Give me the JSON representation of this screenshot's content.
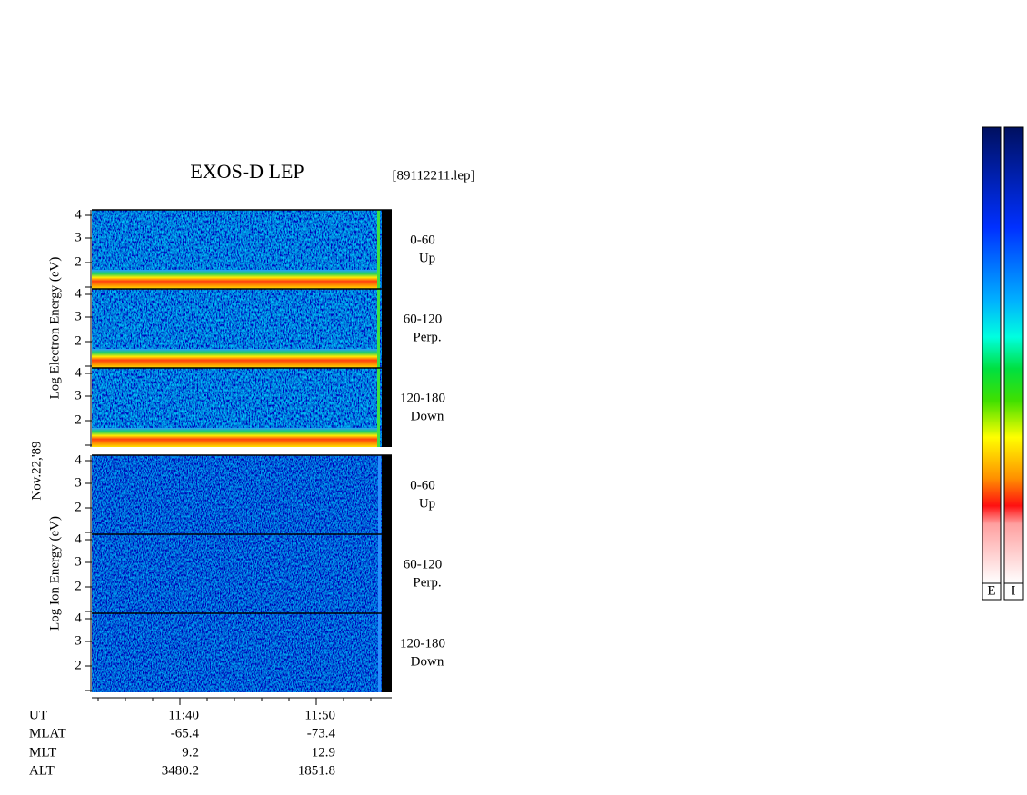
{
  "header": {
    "title": "EXOS-D LEP",
    "file": "[89112211.lep]"
  },
  "date": "Nov.22,'89",
  "groups": [
    {
      "axis_label": "Log Electron Energy (eV)",
      "kind": "electron",
      "panels": [
        {
          "yticks": [
            "4",
            "3",
            "2"
          ],
          "label": [
            "0-60",
            "Up"
          ]
        },
        {
          "yticks": [
            "4",
            "3",
            "2"
          ],
          "label": [
            "60-120",
            "Perp."
          ]
        },
        {
          "yticks": [
            "4",
            "3",
            "2"
          ],
          "label": [
            "120-180",
            "Down"
          ]
        }
      ]
    },
    {
      "axis_label": "Log Ion Energy (eV)",
      "kind": "ion",
      "panels": [
        {
          "yticks": [
            "4",
            "3",
            "2"
          ],
          "label": [
            "0-60",
            "Up"
          ]
        },
        {
          "yticks": [
            "4",
            "3",
            "2"
          ],
          "label": [
            "60-120",
            "Perp."
          ]
        },
        {
          "yticks": [
            "4",
            "3",
            "2"
          ],
          "label": [
            "120-180",
            "Down"
          ]
        }
      ]
    }
  ],
  "footer": {
    "rows": [
      [
        "UT",
        "11:40",
        "11:50"
      ],
      [
        "MLAT",
        "-65.4",
        "-73.4"
      ],
      [
        "MLT",
        "9.2",
        "12.9"
      ],
      [
        "ALT",
        "3480.2",
        "1851.8"
      ]
    ]
  },
  "colorbars": [
    "E",
    "I"
  ]
}
